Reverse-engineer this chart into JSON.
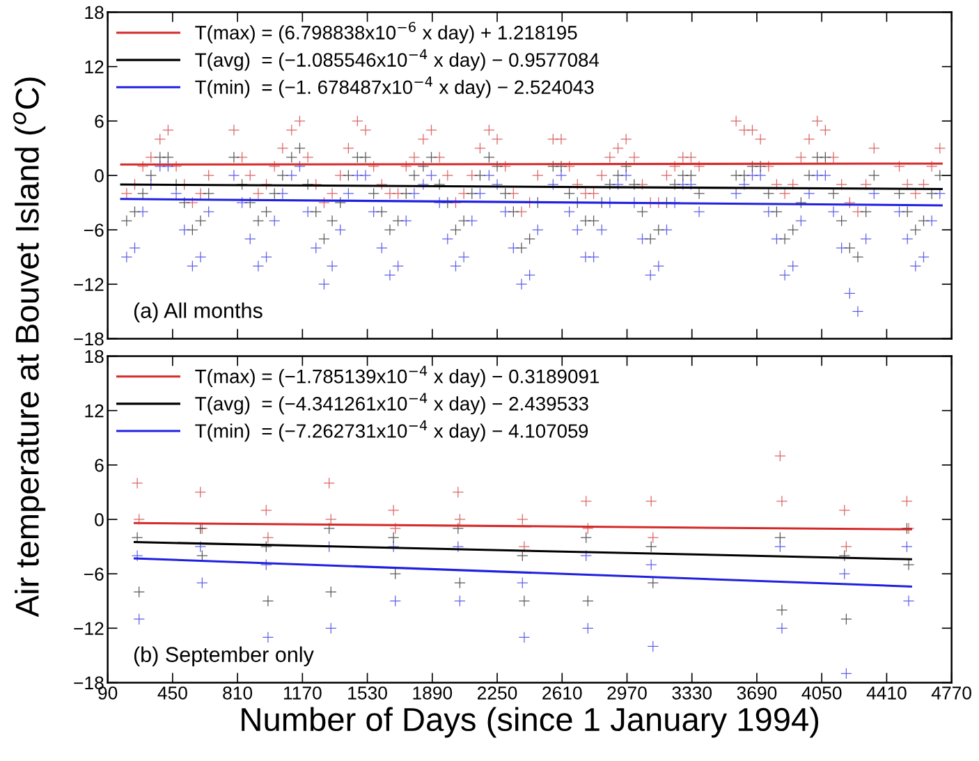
{
  "chart_data": [
    {
      "type": "scatter",
      "ylabel": "Air temperature at Bouvet Island ($^{o}$C)",
      "xlim": [
        90,
        4770
      ],
      "xticks": [
        90,
        450,
        810,
        1170,
        1530,
        1890,
        2250,
        2610,
        2970,
        3330,
        3690,
        4050,
        4410,
        4770
      ],
      "ylim": [
        -18,
        18
      ],
      "yticks": [
        -18,
        -12,
        -6,
        0,
        6,
        12,
        18
      ],
      "tick_labels": "y",
      "legend": "top left",
      "grid": false,
      "annotations": [
        "(a) All months"
      ],
      "series": [
        {
          "marker": "cross",
          "color": "#d03030",
          "x": [
            195,
            240,
            285,
            330,
            380,
            425,
            470,
            515,
            560,
            605,
            650,
            790,
            835,
            880,
            925,
            970,
            1015,
            1060,
            1110,
            1155,
            1200,
            1245,
            1290,
            1335,
            1380,
            1425,
            1475,
            1520,
            1565,
            1610,
            1655,
            1700,
            1745,
            1790,
            1840,
            1885,
            1930,
            1975,
            2020,
            2065,
            2110,
            2155,
            2205,
            2250,
            2295,
            2340,
            2385,
            2430,
            2475,
            2560,
            2605,
            2650,
            2695,
            2740,
            2785,
            2830,
            2875,
            2920,
            2965,
            3010,
            3055,
            3100,
            3145,
            3190,
            3235,
            3280,
            3325,
            3370,
            3575,
            3620,
            3665,
            3710,
            3755,
            3800,
            3845,
            3890,
            3935,
            3980,
            4025,
            4070,
            4115,
            4160,
            4205,
            4250,
            4295,
            4340,
            4480,
            4525,
            4570,
            4615,
            4660,
            4705
          ],
          "values": [
            -2,
            -1,
            1,
            2,
            4,
            5,
            1,
            -1,
            -3,
            -2,
            0,
            5,
            2,
            0,
            -2,
            -1,
            1,
            3,
            5,
            6,
            2,
            -1,
            -3,
            -2,
            0,
            3,
            6,
            5,
            1,
            -1,
            -2,
            -2,
            1,
            2,
            4,
            5,
            2,
            0,
            -3,
            -2,
            0,
            3,
            5,
            4,
            1,
            -2,
            -4,
            -3,
            0,
            4,
            4,
            1,
            -1,
            -2,
            -2,
            0,
            2,
            3,
            4,
            2,
            -1,
            -3,
            -3,
            0,
            1,
            2,
            2,
            1,
            6,
            5,
            5,
            4,
            1,
            -1,
            -2,
            -1,
            2,
            4,
            6,
            5,
            2,
            -1,
            -3,
            -4,
            -1,
            3,
            1,
            -1,
            -2,
            -1,
            1,
            3
          ]
        },
        {
          "marker": "cross",
          "color": "#202020",
          "x": [
            195,
            240,
            285,
            330,
            380,
            425,
            470,
            515,
            560,
            605,
            650,
            790,
            835,
            880,
            925,
            970,
            1015,
            1060,
            1110,
            1155,
            1200,
            1245,
            1290,
            1335,
            1380,
            1425,
            1475,
            1520,
            1565,
            1610,
            1655,
            1700,
            1745,
            1790,
            1840,
            1885,
            1930,
            1975,
            2020,
            2065,
            2110,
            2155,
            2205,
            2250,
            2295,
            2340,
            2385,
            2430,
            2475,
            2560,
            2605,
            2650,
            2695,
            2740,
            2785,
            2830,
            2875,
            2920,
            2965,
            3010,
            3055,
            3100,
            3145,
            3190,
            3235,
            3280,
            3325,
            3370,
            3575,
            3620,
            3665,
            3710,
            3755,
            3800,
            3845,
            3890,
            3935,
            3980,
            4025,
            4070,
            4115,
            4160,
            4205,
            4250,
            4295,
            4340,
            4480,
            4525,
            4570,
            4615,
            4660,
            4705
          ],
          "values": [
            -5,
            -4,
            -2,
            0,
            2,
            2,
            -1,
            -3,
            -6,
            -5,
            -2,
            2,
            -1,
            -3,
            -5,
            -4,
            -2,
            0,
            2,
            3,
            -1,
            -4,
            -7,
            -5,
            -3,
            0,
            2,
            2,
            -2,
            -4,
            -6,
            -5,
            -2,
            0,
            1,
            2,
            -1,
            -3,
            -6,
            -5,
            -2,
            0,
            2,
            1,
            -2,
            -4,
            -8,
            -7,
            -3,
            1,
            1,
            -2,
            -3,
            -5,
            -5,
            -3,
            -1,
            0,
            1,
            -1,
            -4,
            -7,
            -6,
            -3,
            -1,
            0,
            0,
            -2,
            0,
            0,
            1,
            1,
            -2,
            -4,
            -7,
            -6,
            -3,
            0,
            2,
            2,
            -2,
            -5,
            -8,
            -9,
            -4,
            0,
            -2,
            -4,
            -6,
            -5,
            -2,
            0
          ]
        },
        {
          "marker": "cross",
          "color": "#2a2ae0",
          "x": [
            195,
            240,
            285,
            330,
            380,
            425,
            470,
            515,
            560,
            605,
            650,
            790,
            835,
            880,
            925,
            970,
            1015,
            1060,
            1110,
            1155,
            1200,
            1245,
            1290,
            1335,
            1380,
            1425,
            1475,
            1520,
            1565,
            1610,
            1655,
            1700,
            1745,
            1790,
            1840,
            1885,
            1930,
            1975,
            2020,
            2065,
            2110,
            2155,
            2205,
            2250,
            2295,
            2340,
            2385,
            2430,
            2475,
            2560,
            2605,
            2650,
            2695,
            2740,
            2785,
            2830,
            2875,
            2920,
            2965,
            3010,
            3055,
            3100,
            3145,
            3190,
            3235,
            3280,
            3325,
            3370,
            3575,
            3620,
            3665,
            3710,
            3755,
            3800,
            3845,
            3890,
            3935,
            3980,
            4025,
            4070,
            4115,
            4160,
            4205,
            4250,
            4295,
            4340,
            4480,
            4525,
            4570,
            4615,
            4660,
            4705
          ],
          "values": [
            -9,
            -8,
            -4,
            -1,
            1,
            1,
            -2,
            -6,
            -10,
            -9,
            -4,
            0,
            -3,
            -7,
            -10,
            -9,
            -5,
            -2,
            0,
            1,
            -4,
            -8,
            -12,
            -10,
            -6,
            -2,
            0,
            0,
            -4,
            -8,
            -11,
            -10,
            -5,
            -2,
            -1,
            0,
            -3,
            -7,
            -10,
            -9,
            -5,
            -2,
            0,
            -1,
            -4,
            -8,
            -12,
            -11,
            -6,
            -1,
            0,
            -4,
            -6,
            -9,
            -9,
            -6,
            -3,
            -1,
            0,
            -3,
            -7,
            -11,
            -10,
            -6,
            -3,
            -1,
            -1,
            -4,
            -2,
            -1,
            0,
            0,
            -4,
            -7,
            -11,
            -10,
            -5,
            -2,
            0,
            0,
            -4,
            -8,
            -13,
            -15,
            -7,
            -2,
            -4,
            -7,
            -10,
            -9,
            -5,
            -2
          ]
        },
        {
          "type": "line",
          "name": "T(max) = (6.798838x10$^{−6}$ x day) + 1.218195",
          "color": "#d42a2a",
          "x": [
            165,
            4715
          ],
          "values": [
            1.2,
            1.3
          ]
        },
        {
          "type": "line",
          "name": "T(avg)  = (−1.085546x10$^{−4}$ x day) − 0.9577084",
          "color": "#000000",
          "x": [
            165,
            4715
          ],
          "values": [
            -1.0,
            -1.5
          ]
        },
        {
          "type": "line",
          "name": "T(min)  = (−1. 678487x10$^{−4}$ x day) − 2.524043",
          "color": "#2020e0",
          "x": [
            165,
            4715
          ],
          "values": [
            -2.6,
            -3.3
          ]
        }
      ]
    },
    {
      "type": "scatter",
      "xlabel": "Number of Days (since 1 January 1994)",
      "xlim": [
        90,
        4770
      ],
      "xticks": [
        90,
        450,
        810,
        1170,
        1530,
        1890,
        2250,
        2610,
        2970,
        3330,
        3690,
        4050,
        4410,
        4770
      ],
      "ylim": [
        -18,
        18
      ],
      "yticks": [
        -18,
        -12,
        -6,
        0,
        6,
        12,
        18
      ],
      "legend": "top left",
      "grid": false,
      "annotations": [
        "(b) September only"
      ],
      "series": [
        {
          "marker": "cross",
          "color": "#d03030",
          "x": [
            254,
            264,
            604,
            614,
            969,
            979,
            1318,
            1328,
            1675,
            1685,
            2033,
            2043,
            2390,
            2400,
            2743,
            2753,
            3104,
            3114,
            3819,
            3829,
            4176,
            4186,
            4522,
            4532
          ],
          "values": [
            4,
            0,
            3,
            -1,
            1,
            -2,
            4,
            0,
            1,
            -1,
            3,
            0,
            0,
            -3,
            2,
            -1,
            2,
            -2,
            7,
            2,
            1,
            -3,
            2,
            -1
          ]
        },
        {
          "marker": "cross",
          "color": "#202020",
          "x": [
            254,
            264,
            604,
            614,
            969,
            979,
            1318,
            1328,
            1675,
            1685,
            2033,
            2043,
            2390,
            2400,
            2743,
            2753,
            3104,
            3114,
            3819,
            3829,
            4176,
            4186,
            4522,
            4532
          ],
          "values": [
            -2,
            -8,
            -1,
            -4,
            -3,
            -9,
            -1,
            -8,
            -2,
            -6,
            -1,
            -7,
            -4,
            -9,
            -2,
            -9,
            -3,
            -7,
            -2,
            -10,
            -4,
            -11,
            -1,
            -5
          ]
        },
        {
          "marker": "cross",
          "color": "#2a2ae0",
          "x": [
            254,
            264,
            604,
            614,
            969,
            979,
            1318,
            1328,
            1675,
            1685,
            2033,
            2043,
            2390,
            2400,
            2743,
            2753,
            3104,
            3114,
            3819,
            3829,
            4176,
            4186,
            4522,
            4532
          ],
          "values": [
            -4,
            -11,
            -3,
            -7,
            -5,
            -13,
            -3,
            -12,
            -3,
            -9,
            -3,
            -9,
            -7,
            -13,
            -4,
            -12,
            -5,
            -14,
            -3,
            -12,
            -6,
            -17,
            -3,
            -9
          ]
        },
        {
          "type": "line",
          "name": "T(max) = (−1.785139x10$^{−4}$ x day) − 0.3189091",
          "color": "#d42a2a",
          "x": [
            240,
            4545
          ],
          "values": [
            -0.4,
            -1.1
          ]
        },
        {
          "type": "line",
          "name": "T(avg)  = (−4.341261x10$^{−4}$ x day) − 2.439533",
          "color": "#000000",
          "x": [
            240,
            4545
          ],
          "values": [
            -2.5,
            -4.4
          ]
        },
        {
          "type": "line",
          "name": "T(min)  = (−7.262731x10$^{−4}$ x day) − 4.107059",
          "color": "#2020e0",
          "x": [
            240,
            4545
          ],
          "values": [
            -4.3,
            -7.4
          ]
        }
      ]
    }
  ]
}
